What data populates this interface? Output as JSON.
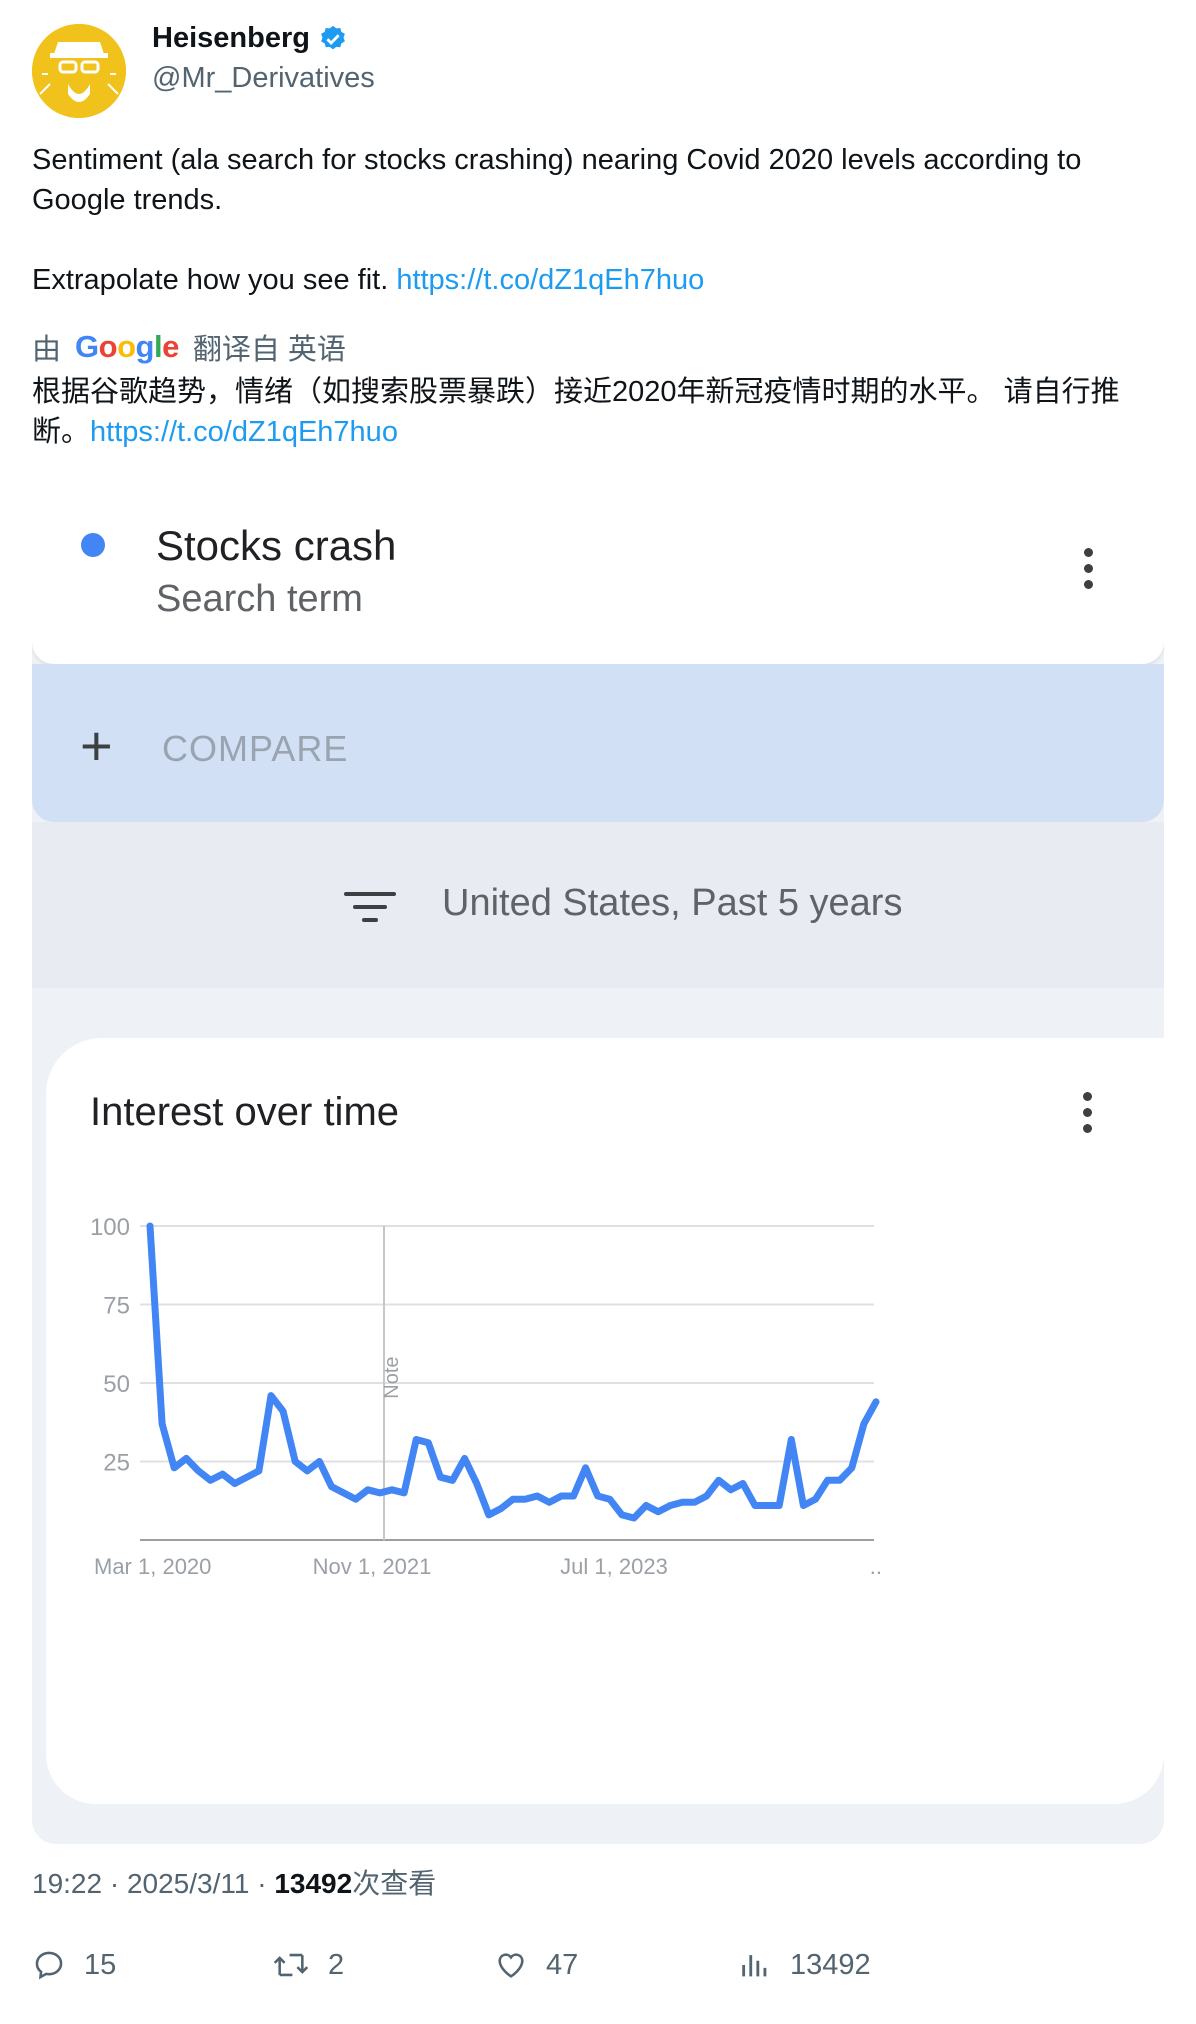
{
  "user": {
    "name": "Heisenberg",
    "handle": "@Mr_Derivatives"
  },
  "tweet": {
    "line1": "Sentiment (ala search for stocks crashing) nearing Covid 2020 levels according to Google trends.",
    "line2_text": "Extrapolate how you see fit. ",
    "link": "https://t.co/dZ1qEh7huo"
  },
  "translation": {
    "prefix": "由",
    "google": "Google",
    "suffix": "翻译自 英语",
    "text": "根据谷歌趋势，情绪（如搜索股票暴跌）接近2020年新冠疫情时期的水平。 请自行推断。",
    "link": "https://t.co/dZ1qEh7huo"
  },
  "trends": {
    "term": "Stocks crash",
    "term_type": "Search term",
    "compare_label": "COMPARE",
    "filter_label": "United States, Past 5 years",
    "chart_title": "Interest over time"
  },
  "chart_data": {
    "type": "line",
    "title": "Interest over time",
    "ylim": [
      0,
      100
    ],
    "yticks": [
      "100",
      "75",
      "50",
      "25"
    ],
    "xticks": [
      "Mar 1, 2020",
      "Nov 1, 2021",
      "Jul 1, 2023",
      ".."
    ],
    "annotation": "Note",
    "colors": {
      "line": "#4285f4",
      "grid": "#e0e0e0"
    },
    "series": [
      {
        "x": [
          "2020-03-01",
          "2020-04-01",
          "2020-05-01",
          "2020-06-01",
          "2020-07-01",
          "2020-08-01",
          "2020-09-01",
          "2020-10-01",
          "2020-11-01",
          "2020-12-01",
          "2021-01-01",
          "2021-02-01",
          "2021-03-01",
          "2021-04-01",
          "2021-05-01",
          "2021-06-01",
          "2021-07-01",
          "2021-08-01",
          "2021-09-01",
          "2021-10-01",
          "2021-11-01",
          "2021-12-01",
          "2022-01-01",
          "2022-02-01",
          "2022-03-01",
          "2022-04-01",
          "2022-05-01",
          "2022-06-01",
          "2022-07-01",
          "2022-08-01",
          "2022-09-01",
          "2022-10-01",
          "2022-11-01",
          "2022-12-01",
          "2023-01-01",
          "2023-02-01",
          "2023-03-01",
          "2023-04-01",
          "2023-05-01",
          "2023-06-01",
          "2023-07-01",
          "2023-08-01",
          "2023-09-01",
          "2023-10-01",
          "2023-11-01",
          "2023-12-01",
          "2024-01-01",
          "2024-02-01",
          "2024-03-01",
          "2024-04-01",
          "2024-05-01",
          "2024-06-01",
          "2024-07-01",
          "2024-08-01",
          "2024-09-01",
          "2024-10-01",
          "2024-11-01",
          "2024-12-01",
          "2025-01-01",
          "2025-02-01",
          "2025-03-01"
        ],
        "values": [
          100,
          37,
          23,
          26,
          22,
          19,
          21,
          18,
          20,
          22,
          46,
          41,
          25,
          22,
          25,
          17,
          15,
          13,
          16,
          15,
          16,
          15,
          32,
          31,
          20,
          19,
          26,
          18,
          8,
          10,
          13,
          13,
          14,
          12,
          14,
          14,
          23,
          14,
          13,
          8,
          7,
          11,
          9,
          11,
          12,
          12,
          14,
          19,
          16,
          18,
          11,
          11,
          11,
          32,
          11,
          13,
          19,
          19,
          23,
          37,
          44
        ]
      }
    ]
  },
  "meta": {
    "time": "19:22 · 2025/3/11 · ",
    "views": "13492",
    "views_suffix": "次查看"
  },
  "actions": {
    "replies": "15",
    "retweets": "2",
    "likes": "47",
    "views": "13492"
  }
}
